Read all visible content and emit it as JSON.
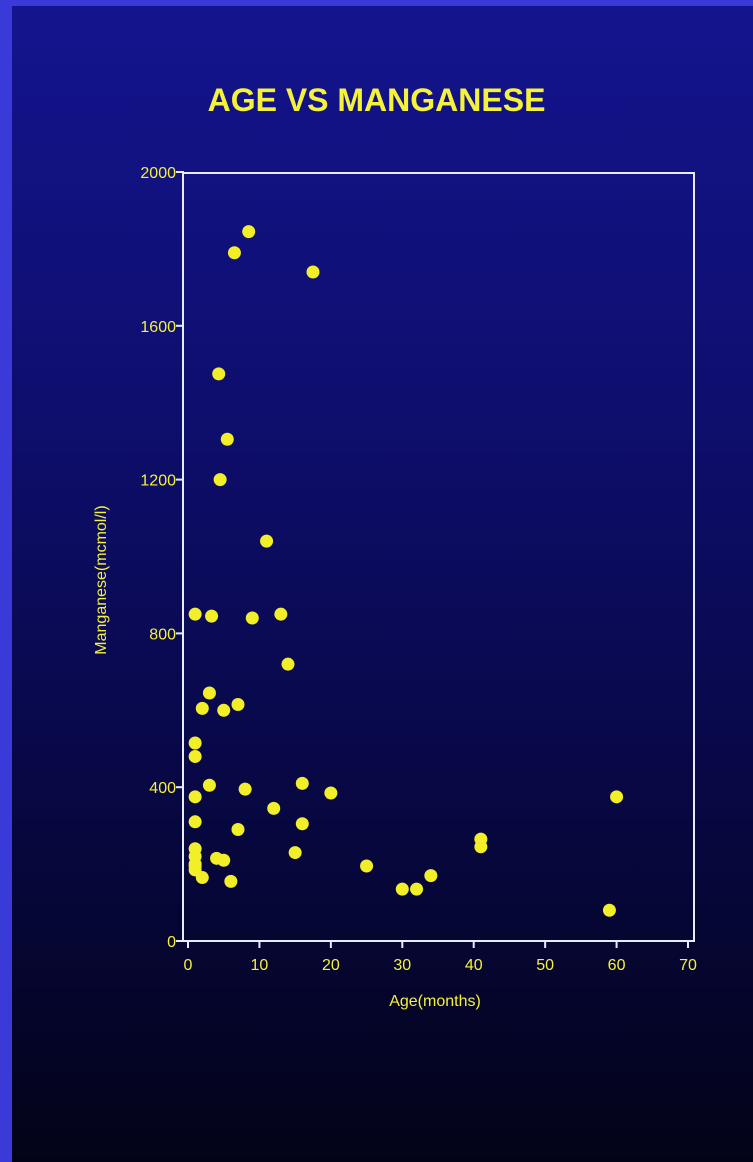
{
  "colors": {
    "background": "#0e0e6e",
    "text": "#f5f23a",
    "axis": "#e8ecff",
    "points": "#f2ee28"
  },
  "chart_data": {
    "type": "scatter",
    "title": "AGE VS MANGANESE",
    "xlabel": "Age(months)",
    "ylabel": "Manganese(mcmol/l)",
    "xlim": [
      0,
      70
    ],
    "ylim": [
      0,
      2000
    ],
    "xticks": [
      0,
      10,
      20,
      30,
      40,
      50,
      60,
      70
    ],
    "yticks": [
      0,
      400,
      800,
      1200,
      1600,
      2000
    ],
    "grid": false,
    "legend": "none",
    "x": [
      1,
      1,
      1,
      1,
      1,
      1,
      1,
      1,
      1,
      1,
      2,
      2,
      3,
      3,
      3.3,
      4,
      4.3,
      4.5,
      5,
      5,
      5.5,
      6,
      6.5,
      7,
      7,
      8,
      8.5,
      9,
      11,
      12,
      13,
      14,
      15,
      16,
      16,
      17.5,
      20,
      25,
      30,
      32,
      34,
      41,
      41,
      59,
      60
    ],
    "y": [
      850,
      515,
      480,
      375,
      310,
      240,
      220,
      200,
      195,
      185,
      605,
      165,
      645,
      405,
      845,
      215,
      1475,
      1200,
      210,
      600,
      1305,
      155,
      1790,
      615,
      290,
      395,
      1845,
      840,
      1040,
      345,
      850,
      720,
      230,
      410,
      305,
      1740,
      385,
      195,
      135,
      135,
      170,
      265,
      245,
      80,
      375
    ]
  }
}
